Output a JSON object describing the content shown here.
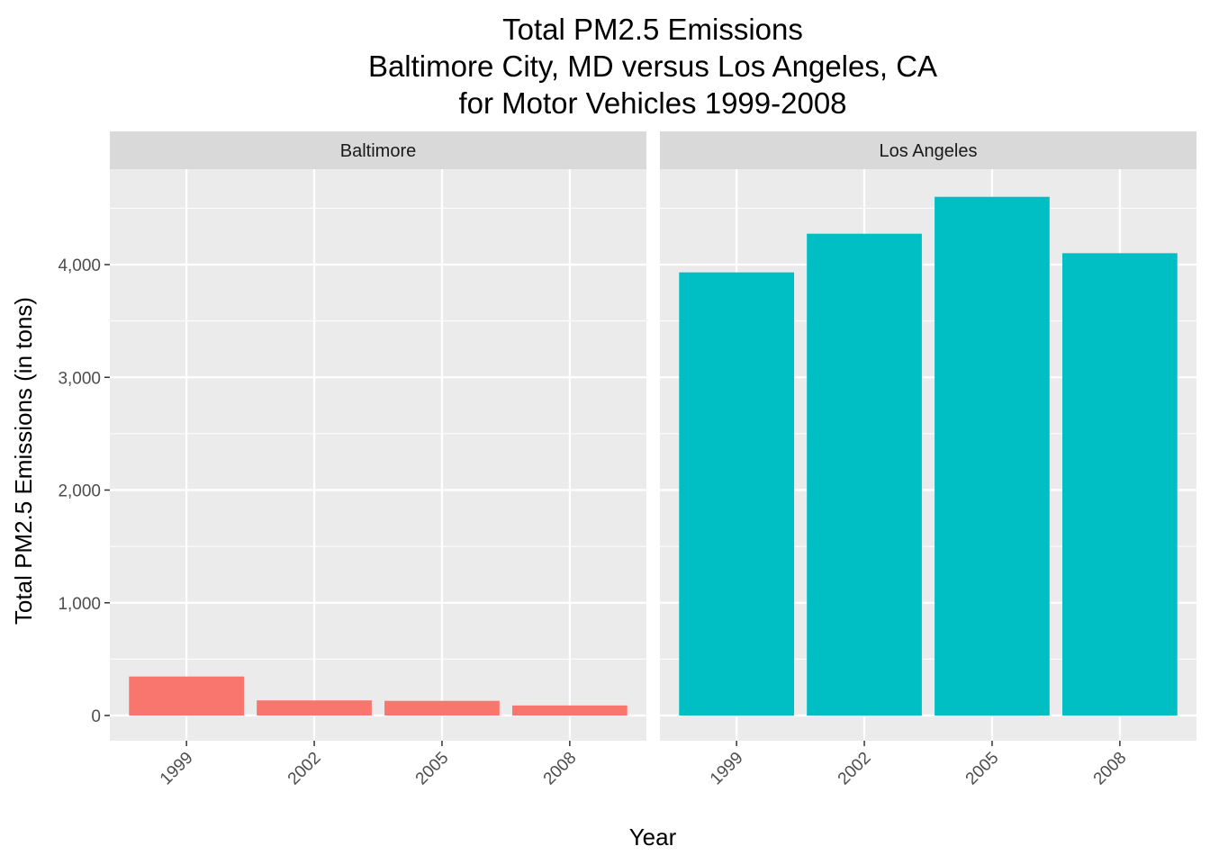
{
  "chart_data": {
    "type": "bar",
    "title_lines": [
      "Total PM2.5 Emissions",
      "Baltimore City, MD versus Los Angeles, CA",
      "for Motor Vehicles 1999-2008"
    ],
    "xlabel": "Year",
    "ylabel": "Total PM2.5 Emissions (in tons)",
    "categories": [
      "1999",
      "2002",
      "2005",
      "2008"
    ],
    "ylim": [
      0,
      4800
    ],
    "y_ticks": [
      {
        "value": 0,
        "label": "0"
      },
      {
        "value": 1000,
        "label": "1,000"
      },
      {
        "value": 2000,
        "label": "2,000"
      },
      {
        "value": 3000,
        "label": "3,000"
      },
      {
        "value": 4000,
        "label": "4,000"
      }
    ],
    "grid": true,
    "facets": [
      {
        "name": "Baltimore",
        "color": "#F8766D",
        "values": [
          346,
          134,
          130,
          89
        ]
      },
      {
        "name": "Los Angeles",
        "color": "#00BFC4",
        "values": [
          3931,
          4274,
          4601,
          4101
        ]
      }
    ]
  }
}
